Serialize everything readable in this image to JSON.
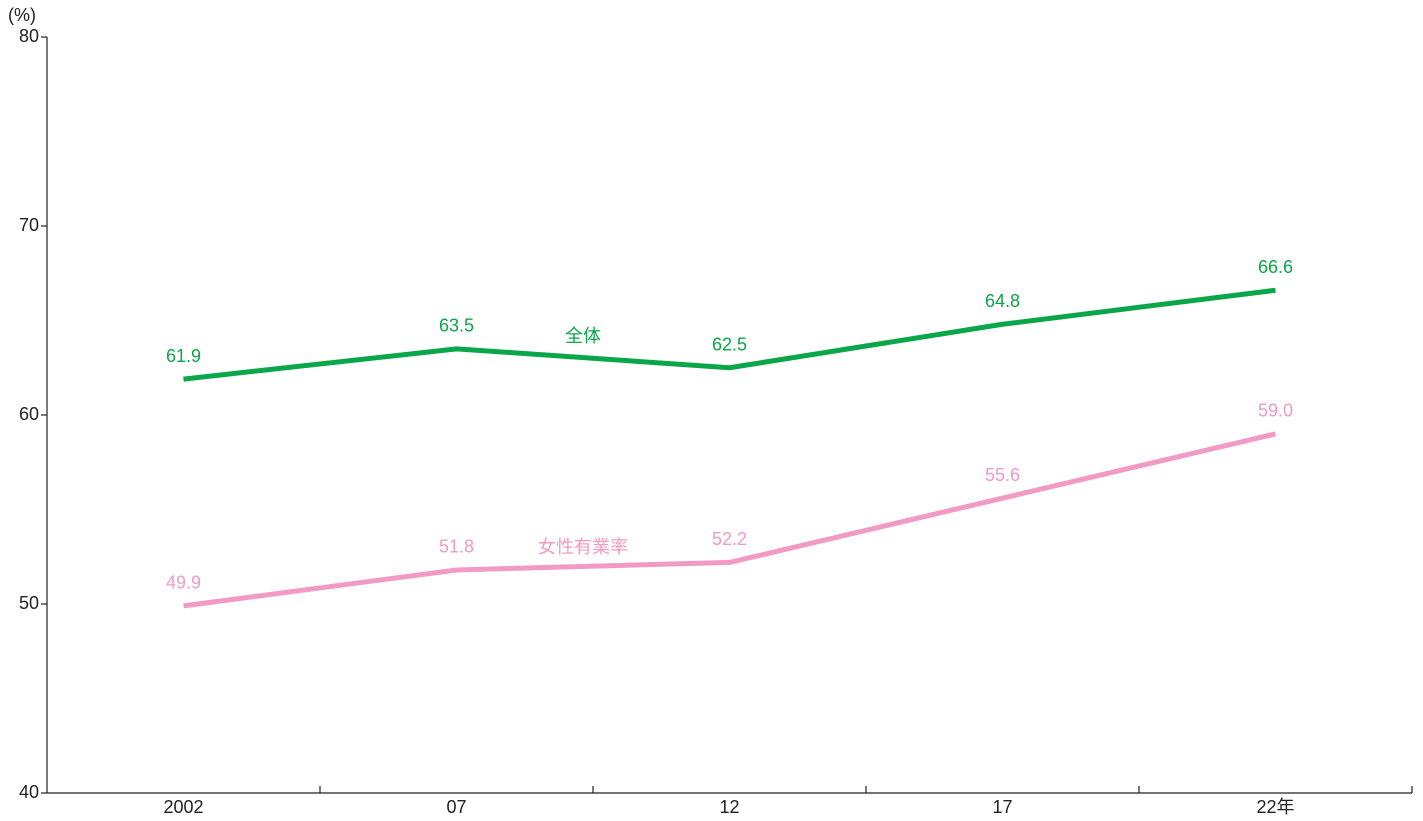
{
  "chart_data": {
    "type": "line",
    "y_unit_label": "(%)",
    "categories": [
      "2002",
      "07",
      "12",
      "17",
      "22年"
    ],
    "series": [
      {
        "name": "全体",
        "color": "#0aa64a",
        "values": [
          61.9,
          63.5,
          62.5,
          64.8,
          66.6
        ],
        "value_labels": [
          "61.9",
          "63.5",
          "62.5",
          "64.8",
          "66.6"
        ]
      },
      {
        "name": "女性有業率",
        "color": "#f29ac3",
        "values": [
          49.9,
          51.8,
          52.2,
          55.6,
          59.0
        ],
        "value_labels": [
          "49.9",
          "51.8",
          "52.2",
          "55.6",
          "59.0"
        ]
      }
    ],
    "ylim": [
      40,
      80
    ],
    "yticks": [
      40,
      50,
      60,
      70,
      80
    ],
    "grid": false
  }
}
